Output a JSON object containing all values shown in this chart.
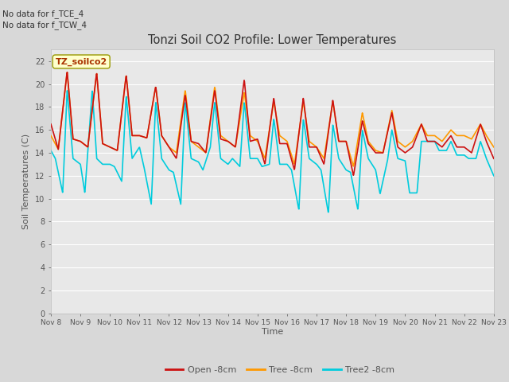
{
  "title": "Tonzi Soil CO2 Profile: Lower Temperatures",
  "ylabel": "Soil Temperatures (C)",
  "xlabel": "Time",
  "top_note_line1": "No data for f_TCE_4",
  "top_note_line2": "No data for f_TCW_4",
  "legend_box_label": "TZ_soilco2",
  "ylim": [
    0,
    23
  ],
  "yticks": [
    0,
    2,
    4,
    6,
    8,
    10,
    12,
    14,
    16,
    18,
    20,
    22
  ],
  "xtick_labels": [
    "Nov 8",
    "Nov 9",
    "Nov 10",
    "Nov 11",
    "Nov 12",
    "Nov 13",
    "Nov 14",
    "Nov 15",
    "Nov 16",
    "Nov 17",
    "Nov 18",
    "Nov 19",
    "Nov 20",
    "Nov 21",
    "Nov 22",
    "Nov 23"
  ],
  "fig_bg_color": "#d8d8d8",
  "plot_bg_color": "#e8e8e8",
  "grid_color": "#ffffff",
  "line_color_open": "#cc1111",
  "line_color_tree": "#ff9900",
  "line_color_tree2": "#00ccdd",
  "line_width": 1.2,
  "legend_labels": [
    "Open -8cm",
    "Tree -8cm",
    "Tree2 -8cm"
  ],
  "n_days": 15,
  "open_times": [
    0,
    0.25,
    0.55,
    0.75,
    1.0,
    1.25,
    1.55,
    1.75,
    2.0,
    2.25,
    2.55,
    2.75,
    3.0,
    3.25,
    3.55,
    3.75,
    4.0,
    4.25,
    4.55,
    4.75,
    5.0,
    5.25,
    5.55,
    5.75,
    6.0,
    6.25,
    6.55,
    6.75,
    7.0,
    7.25,
    7.55,
    7.75,
    8.0,
    8.25,
    8.55,
    8.75,
    9.0,
    9.25,
    9.55,
    9.75,
    10.0,
    10.25,
    10.55,
    10.75,
    11.0,
    11.25,
    11.55,
    11.75,
    12.0,
    12.25,
    12.55,
    12.75,
    13.0,
    13.25,
    13.55,
    13.75,
    14.0,
    14.25,
    14.55,
    14.75,
    15.0
  ],
  "open_vals": [
    16.5,
    14.3,
    21.1,
    15.2,
    15.0,
    14.5,
    21.0,
    14.8,
    14.5,
    14.2,
    20.8,
    15.5,
    15.5,
    15.3,
    19.8,
    15.5,
    14.5,
    13.5,
    19.1,
    15.0,
    14.8,
    14.0,
    19.5,
    15.2,
    15.0,
    14.5,
    20.4,
    15.0,
    15.2,
    13.0,
    18.8,
    14.8,
    14.8,
    12.5,
    18.8,
    14.5,
    14.5,
    13.0,
    18.6,
    15.0,
    15.0,
    12.0,
    16.8,
    14.8,
    14.0,
    14.0,
    17.5,
    14.5,
    14.0,
    14.5,
    16.5,
    15.0,
    15.0,
    14.5,
    15.5,
    14.5,
    14.5,
    14.0,
    16.5,
    15.0,
    13.5
  ],
  "tree_times": [
    0,
    0.25,
    0.55,
    0.75,
    1.0,
    1.25,
    1.55,
    1.75,
    2.0,
    2.25,
    2.55,
    2.75,
    3.0,
    3.25,
    3.55,
    3.75,
    4.0,
    4.25,
    4.55,
    4.75,
    5.0,
    5.25,
    5.55,
    5.75,
    6.0,
    6.25,
    6.55,
    6.75,
    7.0,
    7.25,
    7.55,
    7.75,
    8.0,
    8.25,
    8.55,
    8.75,
    9.0,
    9.25,
    9.55,
    9.75,
    10.0,
    10.25,
    10.55,
    10.75,
    11.0,
    11.25,
    11.55,
    11.75,
    12.0,
    12.25,
    12.55,
    12.75,
    13.0,
    13.25,
    13.55,
    13.75,
    14.0,
    14.25,
    14.55,
    14.75,
    15.0
  ],
  "tree_vals": [
    15.5,
    14.3,
    21.1,
    15.2,
    15.0,
    14.5,
    21.0,
    14.8,
    14.5,
    14.2,
    20.8,
    15.5,
    15.5,
    15.3,
    19.8,
    15.5,
    14.5,
    14.0,
    19.5,
    15.0,
    14.5,
    14.0,
    19.8,
    15.5,
    15.0,
    14.5,
    19.3,
    15.5,
    15.0,
    13.5,
    18.5,
    15.5,
    15.0,
    13.0,
    18.5,
    15.0,
    14.5,
    13.5,
    18.5,
    15.0,
    15.0,
    12.8,
    17.5,
    15.0,
    14.2,
    14.0,
    17.7,
    15.0,
    14.5,
    15.0,
    16.5,
    15.5,
    15.5,
    15.0,
    16.0,
    15.5,
    15.5,
    15.2,
    16.5,
    15.5,
    14.5
  ],
  "tree2_times": [
    0,
    0.15,
    0.4,
    0.55,
    0.75,
    1.0,
    1.15,
    1.4,
    1.55,
    1.75,
    2.0,
    2.15,
    2.4,
    2.55,
    2.75,
    3.0,
    3.15,
    3.4,
    3.55,
    3.75,
    4.0,
    4.15,
    4.4,
    4.55,
    4.75,
    5.0,
    5.15,
    5.4,
    5.55,
    5.75,
    6.0,
    6.15,
    6.4,
    6.55,
    6.75,
    7.0,
    7.15,
    7.4,
    7.55,
    7.75,
    8.0,
    8.15,
    8.4,
    8.55,
    8.75,
    9.0,
    9.15,
    9.4,
    9.55,
    9.75,
    10.0,
    10.15,
    10.4,
    10.55,
    10.75,
    11.0,
    11.15,
    11.4,
    11.55,
    11.75,
    12.0,
    12.15,
    12.4,
    12.55,
    12.75,
    13.0,
    13.15,
    13.4,
    13.55,
    13.75,
    14.0,
    14.15,
    14.4,
    14.55,
    14.75,
    15.0
  ],
  "tree2_vals": [
    14.2,
    13.5,
    10.5,
    19.5,
    13.5,
    13.0,
    10.5,
    19.5,
    13.5,
    13.0,
    13.0,
    12.8,
    11.5,
    19.0,
    13.5,
    14.5,
    12.8,
    9.5,
    18.5,
    13.5,
    12.5,
    12.3,
    9.5,
    18.5,
    13.5,
    13.2,
    12.5,
    14.5,
    18.5,
    13.5,
    13.0,
    13.5,
    12.8,
    18.5,
    13.5,
    13.5,
    12.8,
    13.0,
    17.0,
    13.0,
    13.0,
    12.5,
    9.0,
    17.0,
    13.5,
    13.0,
    12.5,
    8.7,
    16.5,
    13.5,
    12.5,
    12.3,
    9.0,
    16.0,
    13.5,
    12.5,
    10.4,
    13.3,
    16.0,
    13.5,
    13.3,
    10.5,
    10.5,
    15.0,
    15.0,
    15.0,
    14.2,
    14.2,
    15.0,
    13.8,
    13.8,
    13.5,
    13.5,
    15.0,
    13.5,
    12.0
  ]
}
